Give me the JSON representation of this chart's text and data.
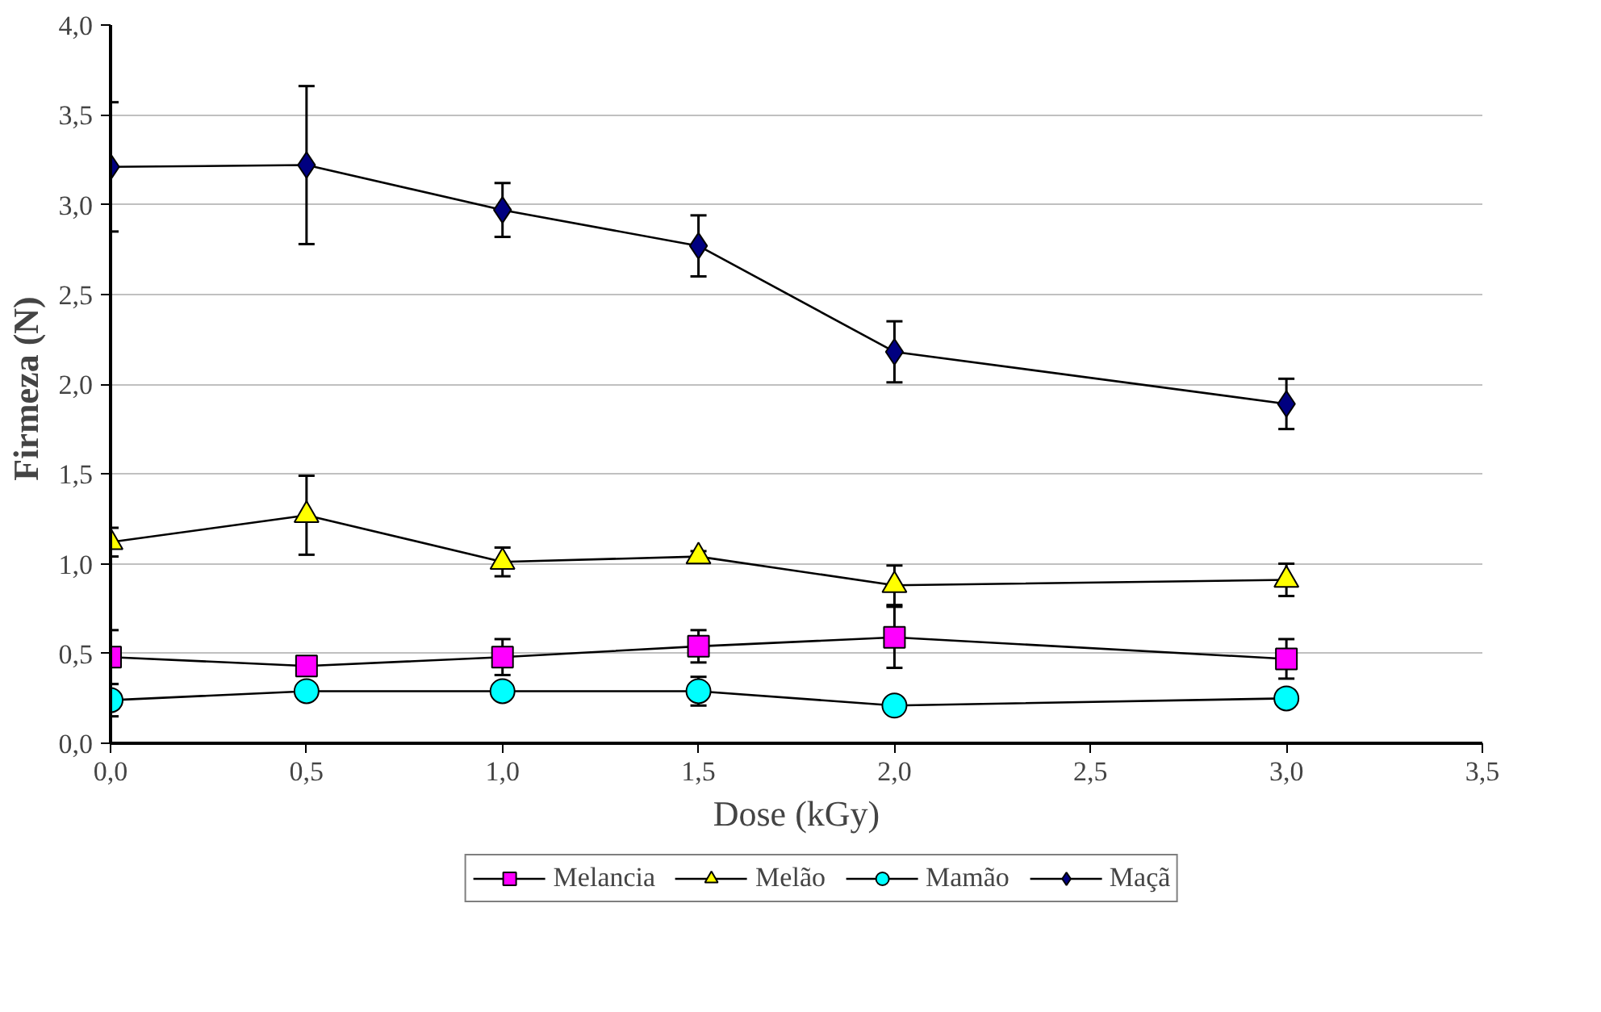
{
  "chart_data": {
    "type": "line",
    "xlabel": "Dose (kGy)",
    "ylabel": "Firmeza  (N)",
    "x": [
      0.0,
      0.5,
      1.0,
      1.5,
      2.0,
      3.0
    ],
    "series": [
      {
        "name": "Melancia",
        "color": "#ff00ff",
        "marker": "square",
        "values": [
          0.48,
          0.43,
          0.48,
          0.54,
          0.59,
          0.47
        ],
        "errors": [
          0.15,
          null,
          0.1,
          0.09,
          0.17,
          0.11
        ]
      },
      {
        "name": "Melão",
        "color": "#ffff00",
        "marker": "triangle",
        "values": [
          1.12,
          1.27,
          1.01,
          1.04,
          0.88,
          0.91
        ],
        "errors": [
          0.08,
          0.22,
          0.08,
          0.03,
          0.11,
          0.09
        ]
      },
      {
        "name": "Mamão",
        "color": "#00ffff",
        "marker": "circle",
        "values": [
          0.24,
          0.29,
          0.29,
          0.29,
          0.21,
          0.25
        ],
        "errors": [
          0.09,
          null,
          null,
          0.08,
          null,
          null
        ]
      },
      {
        "name": "Maçã",
        "color": "#000080",
        "marker": "diamond",
        "values": [
          3.21,
          3.22,
          2.97,
          2.77,
          2.18,
          1.89
        ],
        "errors": [
          0.36,
          0.44,
          0.15,
          0.17,
          0.17,
          0.14
        ]
      }
    ],
    "xlim": [
      0,
      3.5
    ],
    "ylim": [
      0,
      4
    ],
    "xticks": [
      {
        "value": 0,
        "label": "0,0"
      },
      {
        "value": 0.5,
        "label": "0,5"
      },
      {
        "value": 1,
        "label": "1,0"
      },
      {
        "value": 1.5,
        "label": "1,5"
      },
      {
        "value": 2,
        "label": "2,0"
      },
      {
        "value": 2.5,
        "label": "2,5"
      },
      {
        "value": 3,
        "label": "3,0"
      },
      {
        "value": 3.5,
        "label": "3,5"
      }
    ],
    "yticks": [
      {
        "value": 0,
        "label": "0,0"
      },
      {
        "value": 0.5,
        "label": "0,5"
      },
      {
        "value": 1,
        "label": "1,0"
      },
      {
        "value": 1.5,
        "label": "1,5"
      },
      {
        "value": 2,
        "label": "2,0"
      },
      {
        "value": 2.5,
        "label": "2,5"
      },
      {
        "value": 3,
        "label": "3,0"
      },
      {
        "value": 3.5,
        "label": "3,5"
      },
      {
        "value": 4,
        "label": "4,0"
      }
    ],
    "grid": "y",
    "legend": "bottom",
    "line_style": "solid"
  }
}
